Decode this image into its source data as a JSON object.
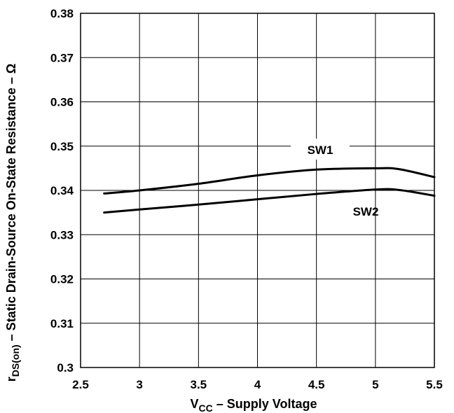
{
  "chart_data": {
    "type": "line",
    "title": "",
    "xlabel": {
      "main": "V",
      "sub": "CC",
      "rest": " – Supply Voltage"
    },
    "ylabel": {
      "main": "r",
      "sub": "DS(on)",
      "rest": " – Static Drain-Source On-State Resistance – Ω"
    },
    "xlim": [
      2.5,
      5.5
    ],
    "ylim": [
      0.3,
      0.38
    ],
    "grid": true,
    "x_ticks": [
      "2.5",
      "3",
      "3.5",
      "4",
      "4.5",
      "5",
      "5.5"
    ],
    "y_ticks": [
      "0.3",
      "0.31",
      "0.32",
      "0.33",
      "0.34",
      "0.35",
      "0.36",
      "0.37",
      "0.38"
    ],
    "series": [
      {
        "name": "SW1",
        "x": [
          2.7,
          3.0,
          3.5,
          4.0,
          4.5,
          5.0,
          5.2,
          5.5
        ],
        "values": [
          0.3393,
          0.34,
          0.3415,
          0.3434,
          0.3447,
          0.345,
          0.3448,
          0.343
        ]
      },
      {
        "name": "SW2",
        "x": [
          2.7,
          3.0,
          3.5,
          4.0,
          4.5,
          5.0,
          5.2,
          5.5
        ],
        "values": [
          0.335,
          0.3357,
          0.3368,
          0.338,
          0.3392,
          0.3402,
          0.3401,
          0.3388
        ]
      }
    ]
  }
}
